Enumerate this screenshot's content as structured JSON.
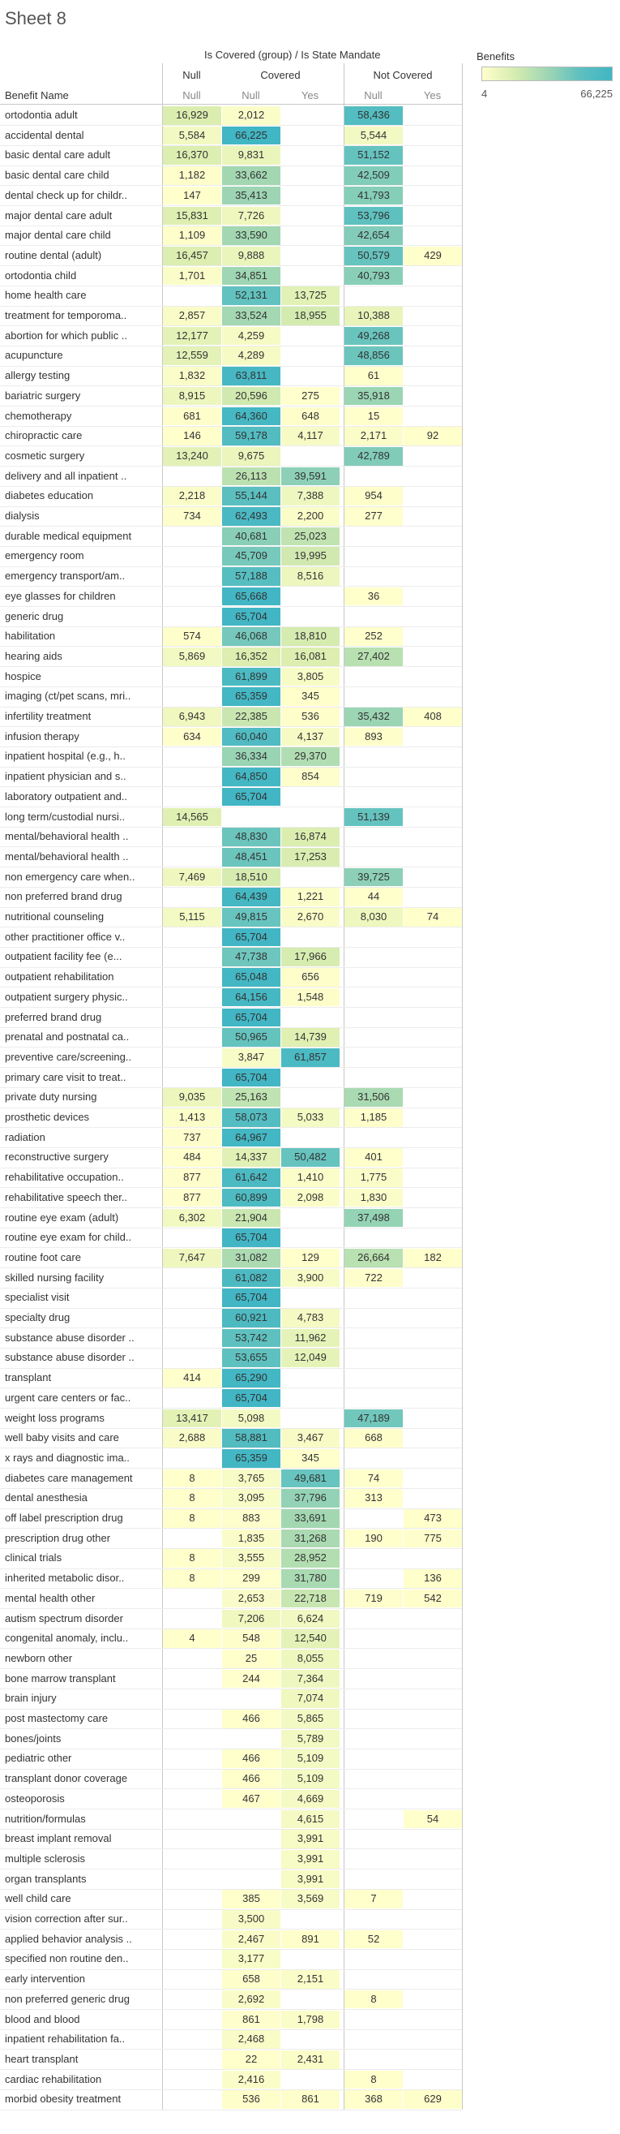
{
  "sheet_title": "Sheet 8",
  "header": {
    "group_title": "Is Covered (group)  /  Is State Mandate",
    "row_header": "Benefit Name"
  },
  "legend": {
    "title": "Benefits",
    "min_label": "4",
    "max_label": "66,225",
    "min": 4,
    "max": 66225,
    "color_low": "#ffffcc",
    "color_high": "#41b6c4"
  },
  "chart_data": {
    "type": "heatmap",
    "title": "Sheet 8",
    "color_measure": "Benefits",
    "groups": [
      {
        "name": "Null",
        "subcolumns": [
          "Null"
        ]
      },
      {
        "name": "Covered",
        "subcolumns": [
          "Null",
          "Yes"
        ]
      },
      {
        "name": "Not Covered",
        "subcolumns": [
          "Null",
          "Yes"
        ]
      }
    ],
    "column_keys": [
      "null_null",
      "covered_null",
      "covered_yes",
      "notcovered_null",
      "notcovered_yes"
    ],
    "rows": [
      {
        "name": "ortodontia adult",
        "values": [
          16929,
          2012,
          null,
          58436,
          null
        ]
      },
      {
        "name": "accidental dental",
        "values": [
          5584,
          66225,
          null,
          5544,
          null
        ]
      },
      {
        "name": "basic dental care adult",
        "values": [
          16370,
          9831,
          null,
          51152,
          null
        ]
      },
      {
        "name": "basic dental care child",
        "values": [
          1182,
          33662,
          null,
          42509,
          null
        ]
      },
      {
        "name": "dental check up for childr..",
        "values": [
          147,
          35413,
          null,
          41793,
          null
        ]
      },
      {
        "name": "major dental care adult",
        "values": [
          15831,
          7726,
          null,
          53796,
          null
        ]
      },
      {
        "name": "major dental care child",
        "values": [
          1109,
          33590,
          null,
          42654,
          null
        ]
      },
      {
        "name": "routine dental (adult)",
        "values": [
          16457,
          9888,
          null,
          50579,
          429
        ]
      },
      {
        "name": "ortodontia child",
        "values": [
          1701,
          34851,
          null,
          40793,
          null
        ]
      },
      {
        "name": "home health care",
        "values": [
          null,
          52131,
          13725,
          null,
          null
        ]
      },
      {
        "name": "treatment for temporoma..",
        "values": [
          2857,
          33524,
          18955,
          10388,
          null
        ]
      },
      {
        "name": "abortion for which public ..",
        "values": [
          12177,
          4259,
          null,
          49268,
          null
        ]
      },
      {
        "name": "acupuncture",
        "values": [
          12559,
          4289,
          null,
          48856,
          null
        ]
      },
      {
        "name": "allergy testing",
        "values": [
          1832,
          63811,
          null,
          61,
          null
        ]
      },
      {
        "name": "bariatric surgery",
        "values": [
          8915,
          20596,
          275,
          35918,
          null
        ]
      },
      {
        "name": "chemotherapy",
        "values": [
          681,
          64360,
          648,
          15,
          null
        ]
      },
      {
        "name": "chiropractic care",
        "values": [
          146,
          59178,
          4117,
          2171,
          92
        ]
      },
      {
        "name": "cosmetic surgery",
        "values": [
          13240,
          9675,
          null,
          42789,
          null
        ]
      },
      {
        "name": "delivery and all inpatient ..",
        "values": [
          null,
          26113,
          39591,
          null,
          null
        ]
      },
      {
        "name": "diabetes education",
        "values": [
          2218,
          55144,
          7388,
          954,
          null
        ]
      },
      {
        "name": "dialysis",
        "values": [
          734,
          62493,
          2200,
          277,
          null
        ]
      },
      {
        "name": "durable medical equipment",
        "values": [
          null,
          40681,
          25023,
          null,
          null
        ]
      },
      {
        "name": "emergency room",
        "values": [
          null,
          45709,
          19995,
          null,
          null
        ]
      },
      {
        "name": "emergency transport/am..",
        "values": [
          null,
          57188,
          8516,
          null,
          null
        ]
      },
      {
        "name": "eye glasses for children",
        "values": [
          null,
          65668,
          null,
          36,
          null
        ]
      },
      {
        "name": "generic drug",
        "values": [
          null,
          65704,
          null,
          null,
          null
        ]
      },
      {
        "name": "habilitation",
        "values": [
          574,
          46068,
          18810,
          252,
          null
        ]
      },
      {
        "name": "hearing aids",
        "values": [
          5869,
          16352,
          16081,
          27402,
          null
        ]
      },
      {
        "name": "hospice",
        "values": [
          null,
          61899,
          3805,
          null,
          null
        ]
      },
      {
        "name": "imaging (ct/pet scans, mri..",
        "values": [
          null,
          65359,
          345,
          null,
          null
        ]
      },
      {
        "name": "infertility treatment",
        "values": [
          6943,
          22385,
          536,
          35432,
          408
        ]
      },
      {
        "name": "infusion therapy",
        "values": [
          634,
          60040,
          4137,
          893,
          null
        ]
      },
      {
        "name": "inpatient hospital (e.g., h..",
        "values": [
          null,
          36334,
          29370,
          null,
          null
        ]
      },
      {
        "name": "inpatient physician and s..",
        "values": [
          null,
          64850,
          854,
          null,
          null
        ]
      },
      {
        "name": "laboratory outpatient and..",
        "values": [
          null,
          65704,
          null,
          null,
          null
        ]
      },
      {
        "name": "long term/custodial nursi..",
        "values": [
          14565,
          null,
          null,
          51139,
          null
        ]
      },
      {
        "name": "mental/behavioral health ..",
        "values": [
          null,
          48830,
          16874,
          null,
          null
        ]
      },
      {
        "name": "mental/behavioral health ..",
        "values": [
          null,
          48451,
          17253,
          null,
          null
        ]
      },
      {
        "name": "non emergency care when..",
        "values": [
          7469,
          18510,
          null,
          39725,
          null
        ]
      },
      {
        "name": "non preferred brand drug",
        "values": [
          null,
          64439,
          1221,
          44,
          null
        ]
      },
      {
        "name": "nutritional counseling",
        "values": [
          5115,
          49815,
          2670,
          8030,
          74
        ]
      },
      {
        "name": "other practitioner office v..",
        "values": [
          null,
          65704,
          null,
          null,
          null
        ]
      },
      {
        "name": "outpatient facility fee (e...",
        "values": [
          null,
          47738,
          17966,
          null,
          null
        ]
      },
      {
        "name": "outpatient rehabilitation",
        "values": [
          null,
          65048,
          656,
          null,
          null
        ]
      },
      {
        "name": "outpatient surgery physic..",
        "values": [
          null,
          64156,
          1548,
          null,
          null
        ]
      },
      {
        "name": "preferred brand drug",
        "values": [
          null,
          65704,
          null,
          null,
          null
        ]
      },
      {
        "name": "prenatal and postnatal ca..",
        "values": [
          null,
          50965,
          14739,
          null,
          null
        ]
      },
      {
        "name": "preventive care/screening..",
        "values": [
          null,
          3847,
          61857,
          null,
          null
        ]
      },
      {
        "name": "primary care visit to treat..",
        "values": [
          null,
          65704,
          null,
          null,
          null
        ]
      },
      {
        "name": "private duty nursing",
        "values": [
          9035,
          25163,
          null,
          31506,
          null
        ]
      },
      {
        "name": "prosthetic devices",
        "values": [
          1413,
          58073,
          5033,
          1185,
          null
        ]
      },
      {
        "name": "radiation",
        "values": [
          737,
          64967,
          null,
          null,
          null
        ]
      },
      {
        "name": "reconstructive surgery",
        "values": [
          484,
          14337,
          50482,
          401,
          null
        ]
      },
      {
        "name": "rehabilitative occupation..",
        "values": [
          877,
          61642,
          1410,
          1775,
          null
        ]
      },
      {
        "name": "rehabilitative speech ther..",
        "values": [
          877,
          60899,
          2098,
          1830,
          null
        ]
      },
      {
        "name": "routine eye exam (adult)",
        "values": [
          6302,
          21904,
          null,
          37498,
          null
        ]
      },
      {
        "name": "routine eye exam for child..",
        "values": [
          null,
          65704,
          null,
          null,
          null
        ]
      },
      {
        "name": "routine foot care",
        "values": [
          7647,
          31082,
          129,
          26664,
          182
        ]
      },
      {
        "name": "skilled nursing facility",
        "values": [
          null,
          61082,
          3900,
          722,
          null
        ]
      },
      {
        "name": "specialist visit",
        "values": [
          null,
          65704,
          null,
          null,
          null
        ]
      },
      {
        "name": "specialty drug",
        "values": [
          null,
          60921,
          4783,
          null,
          null
        ]
      },
      {
        "name": "substance abuse disorder ..",
        "values": [
          null,
          53742,
          11962,
          null,
          null
        ]
      },
      {
        "name": "substance abuse disorder ..",
        "values": [
          null,
          53655,
          12049,
          null,
          null
        ]
      },
      {
        "name": "transplant",
        "values": [
          414,
          65290,
          null,
          null,
          null
        ]
      },
      {
        "name": "urgent care centers or fac..",
        "values": [
          null,
          65704,
          null,
          null,
          null
        ]
      },
      {
        "name": "weight loss programs",
        "values": [
          13417,
          5098,
          null,
          47189,
          null
        ]
      },
      {
        "name": "well baby visits and care",
        "values": [
          2688,
          58881,
          3467,
          668,
          null
        ]
      },
      {
        "name": "x rays and diagnostic ima..",
        "values": [
          null,
          65359,
          345,
          null,
          null
        ]
      },
      {
        "name": "diabetes care management",
        "values": [
          8,
          3765,
          49681,
          74,
          null
        ]
      },
      {
        "name": "dental anesthesia",
        "values": [
          8,
          3095,
          37796,
          313,
          null
        ]
      },
      {
        "name": "off label prescription drug",
        "values": [
          8,
          883,
          33691,
          null,
          473
        ]
      },
      {
        "name": "prescription drug other",
        "values": [
          null,
          1835,
          31268,
          190,
          775
        ]
      },
      {
        "name": "clinical trials",
        "values": [
          8,
          3555,
          28952,
          null,
          null
        ]
      },
      {
        "name": "inherited metabolic disor..",
        "values": [
          8,
          299,
          31780,
          null,
          136
        ]
      },
      {
        "name": "mental health other",
        "values": [
          null,
          2653,
          22718,
          719,
          542
        ]
      },
      {
        "name": "autism spectrum disorder",
        "values": [
          null,
          7206,
          6624,
          null,
          null
        ]
      },
      {
        "name": "congenital anomaly, inclu..",
        "values": [
          4,
          548,
          12540,
          null,
          null
        ]
      },
      {
        "name": "newborn other",
        "values": [
          null,
          25,
          8055,
          null,
          null
        ]
      },
      {
        "name": "bone marrow transplant",
        "values": [
          null,
          244,
          7364,
          null,
          null
        ]
      },
      {
        "name": "brain injury",
        "values": [
          null,
          null,
          7074,
          null,
          null
        ]
      },
      {
        "name": "post mastectomy care",
        "values": [
          null,
          466,
          5865,
          null,
          null
        ]
      },
      {
        "name": "bones/joints",
        "values": [
          null,
          null,
          5789,
          null,
          null
        ]
      },
      {
        "name": "pediatric other",
        "values": [
          null,
          466,
          5109,
          null,
          null
        ]
      },
      {
        "name": "transplant donor coverage",
        "values": [
          null,
          466,
          5109,
          null,
          null
        ]
      },
      {
        "name": "osteoporosis",
        "values": [
          null,
          467,
          4669,
          null,
          null
        ]
      },
      {
        "name": "nutrition/formulas",
        "values": [
          null,
          null,
          4615,
          null,
          54
        ]
      },
      {
        "name": "breast implant removal",
        "values": [
          null,
          null,
          3991,
          null,
          null
        ]
      },
      {
        "name": "multiple sclerosis",
        "values": [
          null,
          null,
          3991,
          null,
          null
        ]
      },
      {
        "name": "organ transplants",
        "values": [
          null,
          null,
          3991,
          null,
          null
        ]
      },
      {
        "name": "well child care",
        "values": [
          null,
          385,
          3569,
          7,
          null
        ]
      },
      {
        "name": "vision correction after sur..",
        "values": [
          null,
          3500,
          null,
          null,
          null
        ]
      },
      {
        "name": "applied behavior analysis ..",
        "values": [
          null,
          2467,
          891,
          52,
          null
        ]
      },
      {
        "name": "specified non routine den..",
        "values": [
          null,
          3177,
          null,
          null,
          null
        ]
      },
      {
        "name": "early intervention",
        "values": [
          null,
          658,
          2151,
          null,
          null
        ]
      },
      {
        "name": "non preferred generic drug",
        "values": [
          null,
          2692,
          null,
          8,
          null
        ]
      },
      {
        "name": "blood and blood",
        "values": [
          null,
          861,
          1798,
          null,
          null
        ]
      },
      {
        "name": "inpatient rehabilitation fa..",
        "values": [
          null,
          2468,
          null,
          null,
          null
        ]
      },
      {
        "name": "heart transplant",
        "values": [
          null,
          22,
          2431,
          null,
          null
        ]
      },
      {
        "name": "cardiac rehabilitation",
        "values": [
          null,
          2416,
          null,
          8,
          null
        ]
      },
      {
        "name": "morbid obesity treatment",
        "values": [
          null,
          536,
          861,
          368,
          629
        ]
      }
    ]
  }
}
